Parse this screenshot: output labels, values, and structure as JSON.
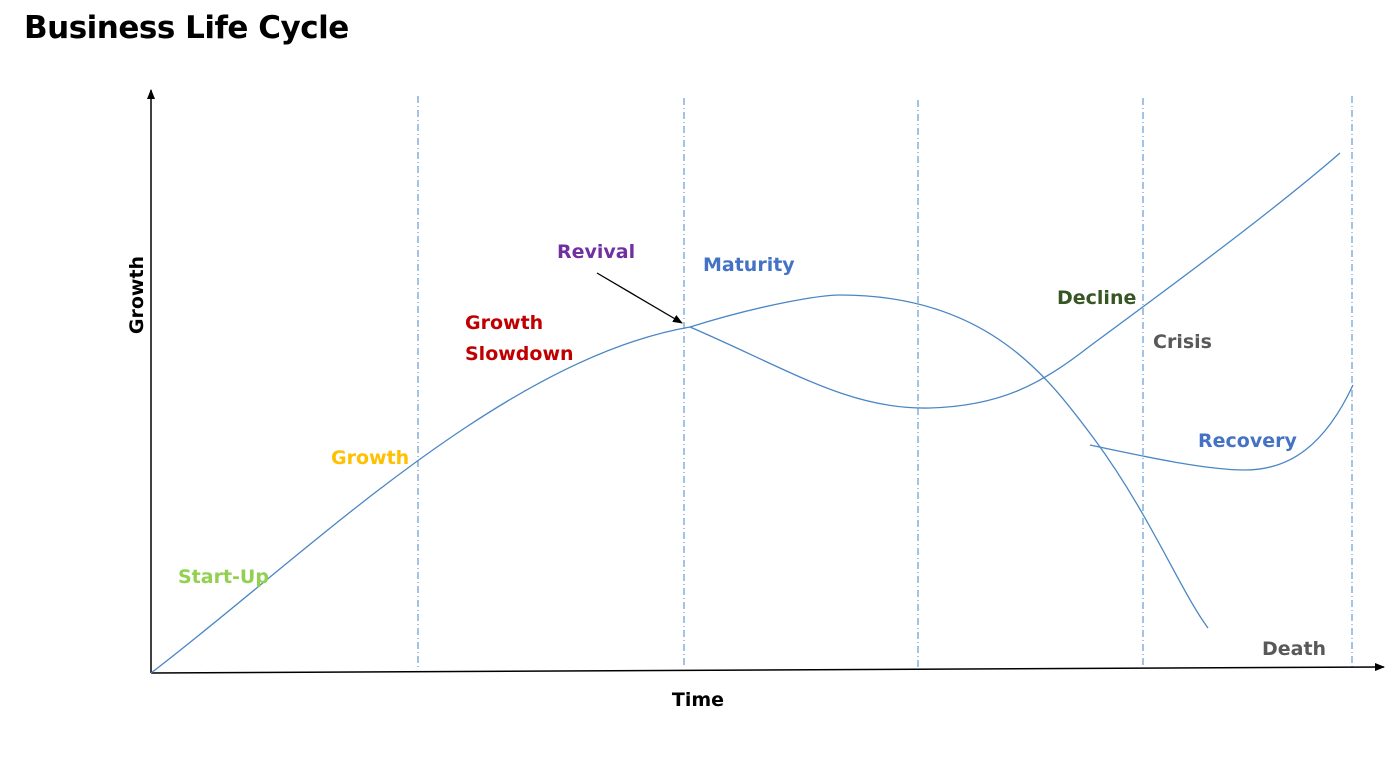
{
  "title": "Business Life Cycle",
  "axes": {
    "x_label": "Time",
    "y_label": "Growth"
  },
  "colors": {
    "curve": "#4a86c5",
    "divider": "#4a86c5",
    "axis": "#000000",
    "start_up": "#92d050",
    "growth": "#ffc000",
    "growth_slowdown": "#c00000",
    "revival": "#7030a0",
    "maturity": "#4472c4",
    "decline": "#375623",
    "crisis": "#595959",
    "recovery": "#4472c4",
    "death": "#595959"
  },
  "stages": {
    "start_up": "Start-Up",
    "growth": "Growth",
    "growth_slowdown_line1": "Growth",
    "growth_slowdown_line2": "Slowdown",
    "revival": "Revival",
    "maturity": "Maturity",
    "decline": "Decline",
    "crisis": "Crisis",
    "recovery": "Recovery",
    "death": "Death"
  }
}
